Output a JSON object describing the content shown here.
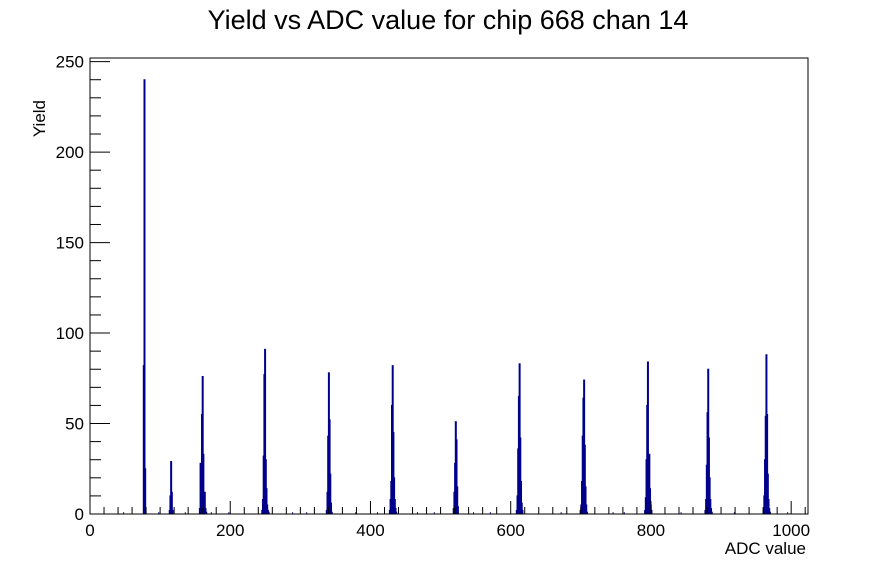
{
  "chart_data": {
    "type": "bar",
    "title": "Yield vs ADC value for chip 668 chan 14",
    "xlabel": "ADC value",
    "ylabel": "Yield",
    "xlim": [
      0,
      1024
    ],
    "ylim": [
      0,
      252
    ],
    "x_ticks": [
      0,
      200,
      400,
      600,
      800,
      1000
    ],
    "y_ticks": [
      0,
      50,
      100,
      150,
      200,
      250
    ],
    "grid": false,
    "legend": "none",
    "colors": {
      "series": "#00008b",
      "axis": "#000000"
    },
    "series": [
      {
        "x": [
          76,
          77,
          78,
          113,
          114,
          115,
          116,
          117,
          156,
          157,
          158,
          159,
          160,
          161,
          162,
          163,
          164,
          165,
          245,
          246,
          247,
          248,
          249,
          250,
          251,
          252,
          253,
          254,
          337,
          338,
          339,
          340,
          341,
          342,
          343,
          344,
          427,
          428,
          429,
          430,
          431,
          432,
          433,
          434,
          435,
          436,
          518,
          519,
          520,
          521,
          522,
          523,
          524,
          608,
          609,
          610,
          611,
          612,
          613,
          614,
          615,
          616,
          699,
          700,
          701,
          702,
          703,
          704,
          705,
          706,
          707,
          708,
          791,
          792,
          793,
          794,
          795,
          796,
          797,
          798,
          799,
          800,
          877,
          878,
          879,
          880,
          881,
          882,
          883,
          884,
          885,
          886,
          960,
          961,
          962,
          963,
          964,
          965,
          966,
          967,
          968,
          969
        ],
        "values": [
          82,
          240,
          25,
          2,
          10,
          29,
          12,
          2,
          3,
          28,
          19,
          55,
          76,
          33,
          10,
          12,
          3,
          1,
          2,
          8,
          32,
          77,
          91,
          30,
          14,
          5,
          2,
          1,
          2,
          12,
          43,
          78,
          52,
          22,
          6,
          1,
          2,
          8,
          18,
          60,
          82,
          45,
          20,
          8,
          3,
          1,
          3,
          12,
          28,
          51,
          41,
          15,
          4,
          2,
          10,
          36,
          65,
          83,
          42,
          18,
          6,
          2,
          2,
          5,
          18,
          43,
          64,
          74,
          38,
          15,
          5,
          1,
          2,
          9,
          30,
          60,
          84,
          32,
          33,
          14,
          5,
          2,
          2,
          8,
          27,
          56,
          80,
          42,
          20,
          8,
          3,
          1,
          2,
          10,
          30,
          54,
          88,
          55,
          22,
          8,
          3,
          1
        ]
      }
    ],
    "sparse_hits": [
      48,
      98,
      136,
      173,
      198,
      289,
      309,
      379,
      410,
      467,
      491,
      547,
      571,
      672,
      746,
      762,
      843,
      919,
      995
    ]
  }
}
